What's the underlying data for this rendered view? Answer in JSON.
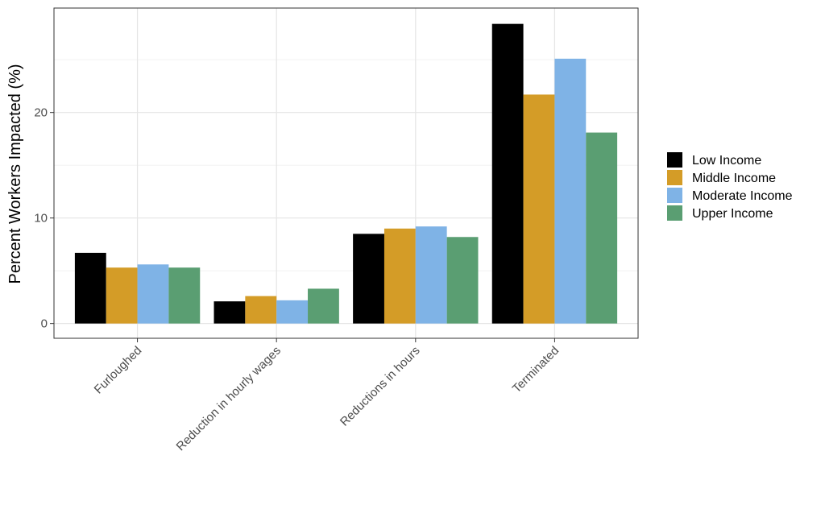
{
  "chart_data": {
    "type": "bar",
    "title": "",
    "xlabel": "",
    "ylabel": "Percent Workers Impacted (%)",
    "categories": [
      "Furloughed",
      "Reduction in hourly wages",
      "Reductions in hours",
      "Terminated"
    ],
    "series": [
      {
        "name": "Low Income",
        "color": "#000000",
        "values": [
          6.7,
          2.1,
          8.5,
          28.4
        ]
      },
      {
        "name": "Middle Income",
        "color": "#D49C27",
        "values": [
          5.3,
          2.6,
          9.0,
          21.7
        ]
      },
      {
        "name": "Moderate Income",
        "color": "#7FB3E6",
        "values": [
          5.6,
          2.2,
          9.2,
          25.1
        ]
      },
      {
        "name": "Upper Income",
        "color": "#5A9E72",
        "values": [
          5.3,
          3.3,
          8.2,
          18.1
        ]
      }
    ],
    "ylim": [
      -1.4,
      29.9
    ],
    "yticks": [
      0,
      10,
      20
    ],
    "grid": true,
    "legend_position": "right",
    "theme": "bw"
  }
}
